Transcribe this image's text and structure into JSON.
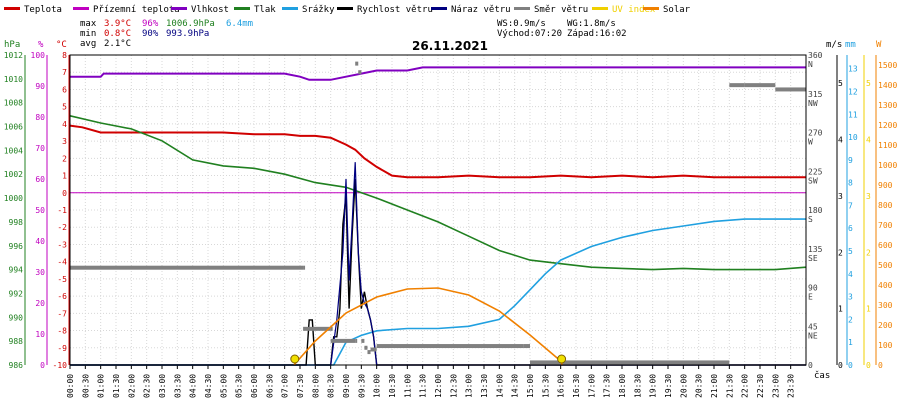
{
  "chart_data": {
    "type": "line",
    "title": "26.11.2021",
    "legend": [
      {
        "label": "Teplota",
        "color": "#d00000"
      },
      {
        "label": "Přízemní teplota",
        "color": "#c000c0"
      },
      {
        "label": "Vlhkost",
        "color": "#8000c0"
      },
      {
        "label": "Tlak",
        "color": "#208020"
      },
      {
        "label": "Srážky",
        "color": "#20a0e0"
      },
      {
        "label": "Rychlost větru",
        "color": "#000000"
      },
      {
        "label": "Náraz větru",
        "color": "#000080"
      },
      {
        "label": "Směr větru",
        "color": "#808080"
      },
      {
        "label": "UV index",
        "color": "#f0d000"
      },
      {
        "label": "Solar",
        "color": "#f08000"
      }
    ],
    "stats": {
      "max_label": "max",
      "min_label": "min",
      "avg_label": "avg",
      "max_temp": "3.9°C",
      "max_hum": "96%",
      "max_press": "1006.9hPa",
      "max_rain": "6.4mm",
      "min_temp": "0.8°C",
      "min_hum": "90%",
      "min_press": "993.9hPa",
      "avg_temp": "2.1°C"
    },
    "wind_info": {
      "ws": "WS:0.9m/s",
      "wg": "WG:1.8m/s",
      "sunrise": "Východ:07:20",
      "sunset": "Západ:16:02"
    },
    "x_axis": {
      "label": "čas",
      "ticks": [
        "00:00",
        "00:30",
        "01:00",
        "01:30",
        "02:00",
        "02:30",
        "03:00",
        "03:30",
        "04:00",
        "04:30",
        "05:00",
        "05:30",
        "06:00",
        "06:30",
        "07:00",
        "07:30",
        "08:00",
        "08:30",
        "09:00",
        "09:30",
        "10:00",
        "10:30",
        "11:00",
        "11:30",
        "12:00",
        "12:30",
        "13:00",
        "13:30",
        "14:00",
        "14:30",
        "15:00",
        "15:30",
        "16:00",
        "16:30",
        "17:00",
        "17:30",
        "18:00",
        "18:30",
        "19:00",
        "19:30",
        "20:00",
        "20:30",
        "21:00",
        "21:30",
        "22:00",
        "22:30",
        "23:00",
        "23:30"
      ]
    },
    "left_axes": [
      {
        "unit": "hPa",
        "color": "#208020",
        "ticks": [
          "986",
          "988",
          "990",
          "992",
          "994",
          "996",
          "998",
          "1000",
          "1002",
          "1004",
          "1006",
          "1008",
          "1010",
          "1012"
        ]
      },
      {
        "unit": "%",
        "color": "#c000c0",
        "ticks": [
          "0",
          "10",
          "20",
          "30",
          "40",
          "50",
          "60",
          "70",
          "80",
          "90",
          "100"
        ]
      },
      {
        "unit": "°C",
        "color": "#d00000",
        "ticks": [
          "-10",
          "-9",
          "-8",
          "-7",
          "-6",
          "-5",
          "-4",
          "-3",
          "-2",
          "-1",
          "0",
          "1",
          "2",
          "3",
          "4",
          "5",
          "6",
          "7",
          "8"
        ]
      }
    ],
    "right_axes": [
      {
        "unit": "",
        "color": "#404040",
        "ticks": [
          "0",
          "45",
          "90",
          "135",
          "180",
          "225",
          "270",
          "315",
          "360"
        ],
        "dir_labels": [
          "",
          "NE",
          "E",
          "SE",
          "S",
          "SW",
          "W",
          "NW",
          "N"
        ]
      },
      {
        "unit": "m/s",
        "color": "#000000",
        "ticks": [
          "0",
          "1",
          "2",
          "3",
          "4",
          "5"
        ]
      },
      {
        "unit": "mm",
        "color": "#20a0e0",
        "ticks": [
          "0",
          "1",
          "2",
          "3",
          "4",
          "5",
          "6",
          "7",
          "8",
          "9",
          "10",
          "11",
          "12",
          "13"
        ]
      },
      {
        "unit": "",
        "color": "#f0d000",
        "ticks": [
          "0",
          "1",
          "2",
          "3",
          "4",
          "5"
        ]
      },
      {
        "unit": "W",
        "color": "#f08000",
        "ticks": [
          "0",
          "100",
          "200",
          "300",
          "400",
          "500",
          "600",
          "700",
          "800",
          "900",
          "1000",
          "1100",
          "1200",
          "1300",
          "1400",
          "1500"
        ]
      }
    ],
    "series": [
      {
        "name": "Teplota",
        "unit": "°C",
        "color": "#d00000",
        "x": [
          0,
          0.4,
          1,
          2,
          3,
          4,
          5,
          6,
          7,
          7.5,
          8,
          8.5,
          9,
          9.3,
          9.6,
          10,
          10.5,
          11,
          12,
          13,
          14,
          15,
          16,
          17,
          18,
          19,
          20,
          21,
          22,
          23,
          24
        ],
        "y": [
          3.9,
          3.8,
          3.5,
          3.5,
          3.5,
          3.5,
          3.5,
          3.4,
          3.4,
          3.3,
          3.3,
          3.2,
          2.8,
          2.5,
          2.0,
          1.5,
          1.0,
          0.9,
          0.9,
          1.0,
          0.9,
          0.9,
          1.0,
          0.9,
          1.0,
          0.9,
          1.0,
          0.9,
          0.9,
          0.9,
          0.9
        ]
      },
      {
        "name": "Přízemní teplota",
        "unit": "°C",
        "color": "#c000c0",
        "x": [
          0,
          24
        ],
        "y": [
          0,
          0
        ]
      },
      {
        "name": "Vlhkost",
        "unit": "%",
        "color": "#8000c0",
        "x": [
          0,
          1,
          1.1,
          7,
          7.5,
          7.8,
          8.5,
          9,
          9.5,
          10,
          11,
          11.5,
          12,
          24
        ],
        "y": [
          93,
          93,
          94,
          94,
          93,
          92,
          92,
          93,
          94,
          95,
          95,
          96,
          96,
          96
        ]
      },
      {
        "name": "Tlak",
        "unit": "hPa",
        "color": "#208020",
        "x": [
          0,
          1,
          2,
          3,
          4,
          5,
          6,
          7,
          8,
          9,
          10,
          11,
          12,
          13,
          14,
          15,
          16,
          17,
          18,
          19,
          20,
          21,
          22,
          23,
          24
        ],
        "y": [
          1006.9,
          1006.3,
          1005.8,
          1004.8,
          1003.2,
          1002.7,
          1002.5,
          1002.0,
          1001.3,
          1000.9,
          1000.0,
          999.0,
          998.0,
          996.8,
          995.6,
          994.8,
          994.5,
          994.2,
          994.1,
          994.0,
          994.1,
          994.0,
          994.0,
          994.0,
          994.2
        ]
      },
      {
        "name": "Srážky",
        "unit": "mm",
        "color": "#20a0e0",
        "x": [
          0,
          8.6,
          8.8,
          9.0,
          9.5,
          10,
          11,
          12,
          13,
          14,
          14.5,
          15,
          15.5,
          16,
          17,
          18,
          19,
          20,
          21,
          22,
          23,
          24
        ],
        "y": [
          0,
          0,
          0.5,
          1.0,
          1.3,
          1.5,
          1.6,
          1.6,
          1.7,
          2.0,
          2.6,
          3.3,
          4.0,
          4.6,
          5.2,
          5.6,
          5.9,
          6.1,
          6.3,
          6.4,
          6.4,
          6.4
        ]
      },
      {
        "name": "Rychlost větru",
        "unit": "m/s",
        "color": "#000000",
        "x": [
          0,
          7.7,
          7.8,
          7.9,
          8.0,
          8.5,
          8.6,
          8.7,
          8.8,
          8.9,
          9.0,
          9.1,
          9.2,
          9.3,
          9.4,
          9.5,
          9.6,
          9.7,
          9.8,
          9.9,
          10.0,
          24
        ],
        "y": [
          0,
          0,
          0.8,
          0.8,
          0,
          0,
          0.5,
          0.5,
          1.0,
          2.5,
          3.0,
          1.0,
          2.3,
          3.3,
          2.0,
          1.0,
          1.3,
          1.0,
          0.8,
          0.5,
          0,
          0
        ]
      },
      {
        "name": "Náraz větru",
        "unit": "m/s",
        "color": "#000080",
        "x": [
          0,
          8.5,
          8.7,
          8.9,
          9.0,
          9.1,
          9.2,
          9.3,
          9.4,
          9.5,
          9.6,
          9.7,
          9.8,
          9.9,
          10.0,
          24
        ],
        "y": [
          0,
          0,
          0.8,
          2.0,
          3.3,
          1.5,
          2.5,
          3.6,
          2.0,
          1.3,
          1.1,
          1.0,
          0.8,
          0.5,
          0,
          0
        ]
      },
      {
        "name": "Směr větru",
        "unit": "°",
        "color": "#808080",
        "x": [
          0,
          7.6,
          7.6,
          8.5,
          8.5,
          9.3,
          9.3,
          9.4,
          9.5,
          9.6,
          9.7,
          9.8,
          10.0,
          14.8,
          15,
          16,
          21,
          21.5,
          22,
          22.5,
          23,
          24
        ],
        "y": [
          113,
          113,
          42,
          42,
          28,
          28,
          350,
          340,
          28,
          20,
          15,
          18,
          22,
          22,
          3,
          3,
          3,
          325,
          325,
          325,
          320,
          320
        ]
      },
      {
        "name": "Solar",
        "unit": "W",
        "color": "#f08000",
        "x": [
          7.3,
          8,
          9,
          10,
          11,
          12,
          13,
          14,
          15,
          16,
          16.05
        ],
        "y": [
          0,
          120,
          260,
          340,
          380,
          385,
          350,
          270,
          150,
          20,
          0
        ]
      },
      {
        "name": "UV index",
        "unit": "",
        "color": "#f0d000",
        "x": [
          0,
          24
        ],
        "y": [
          0,
          0
        ]
      }
    ],
    "markers": {
      "sunrise_hour": 7.33,
      "sunset_hour": 16.03
    }
  }
}
